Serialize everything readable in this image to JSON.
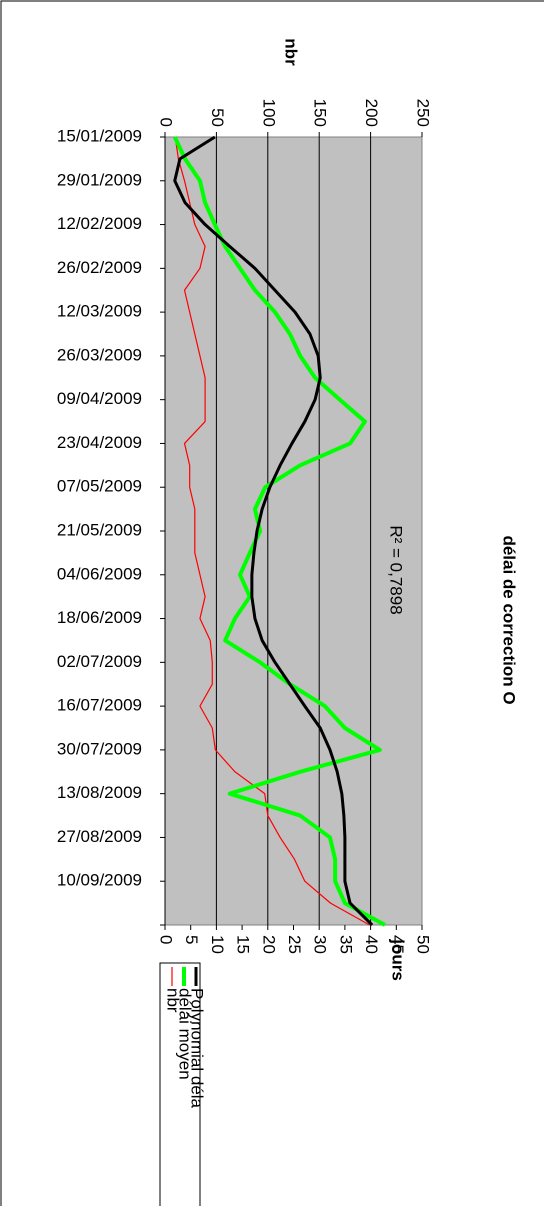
{
  "chart_data": {
    "type": "line",
    "title": "délai de correction O",
    "ylabel": "jours",
    "y2label": "nbr",
    "annotation": "R² = 0,7898",
    "x": [
      "15/01/2009",
      "22/01/2009",
      "29/01/2009",
      "05/02/2009",
      "12/02/2009",
      "19/02/2009",
      "26/02/2009",
      "05/03/2009",
      "12/03/2009",
      "19/03/2009",
      "26/03/2009",
      "02/04/2009",
      "09/04/2009",
      "16/04/2009",
      "23/04/2009",
      "30/04/2009",
      "07/05/2009",
      "14/05/2009",
      "21/05/2009",
      "28/05/2009",
      "04/06/2009",
      "11/06/2009",
      "18/06/2009",
      "25/06/2009",
      "02/07/2009",
      "09/07/2009",
      "16/07/2009",
      "23/07/2009",
      "30/07/2009",
      "06/08/2009",
      "13/08/2009",
      "20/08/2009",
      "27/08/2009",
      "03/09/2009",
      "10/09/2009",
      "17/09/2009",
      "24/09/2009"
    ],
    "xlim": [
      "15/01/2009",
      "24/09/2009"
    ],
    "xticks": [
      "15/01/2009",
      "29/01/2009",
      "12/02/2009",
      "26/02/2009",
      "12/03/2009",
      "26/03/2009",
      "09/04/2009",
      "23/04/2009",
      "07/05/2009",
      "21/05/2009",
      "04/06/2009",
      "18/06/2009",
      "02/07/2009",
      "16/07/2009",
      "30/07/2009",
      "13/08/2009",
      "27/08/2009",
      "10/09/2009"
    ],
    "ylim": [
      0,
      50
    ],
    "yticks": [
      0,
      5,
      10,
      15,
      20,
      25,
      30,
      35,
      40,
      45,
      50
    ],
    "y2lim": [
      0,
      250
    ],
    "y2ticks": [
      0,
      50,
      100,
      150,
      200,
      250
    ],
    "grid": true,
    "series": [
      {
        "name": "nbr",
        "color": "#ff0000",
        "axis": "y2",
        "values": [
          10,
          13,
          19,
          24,
          29,
          39,
          34,
          19,
          24,
          29,
          34,
          39,
          39,
          39,
          19,
          24,
          24,
          29,
          29,
          29,
          34,
          39,
          34,
          44,
          46,
          46,
          34,
          46,
          49,
          68,
          97,
          100,
          112,
          126,
          136,
          161,
          199
        ]
      },
      {
        "name": "délai moyen",
        "color": "#00ff00",
        "values": [
          1.9,
          3.9,
          6.8,
          7.8,
          9.7,
          11.7,
          14.6,
          17.5,
          21.4,
          24.3,
          26.3,
          29.2,
          34,
          38.9,
          36,
          26.3,
          19.5,
          17.5,
          18.5,
          16.5,
          14.6,
          16.5,
          13.6,
          11.7,
          18.5,
          24.3,
          31.1,
          35,
          41.8,
          26.3,
          12.6,
          26.3,
          32.1,
          33.1,
          33.1,
          35,
          42.8
        ]
      },
      {
        "name": "Polynomial déla",
        "color": "#000000",
        "values": [
          9.7,
          2.9,
          1.9,
          3.9,
          7.8,
          12.6,
          17.5,
          21.4,
          25.3,
          28.2,
          29.8,
          30.2,
          29.2,
          27.2,
          24.7,
          22.4,
          20.4,
          18.9,
          17.9,
          17.3,
          16.9,
          16.9,
          17.5,
          18.9,
          21.4,
          24.3,
          27.2,
          30.2,
          32.1,
          33.5,
          34.4,
          34.8,
          35,
          35,
          35,
          36,
          40.3
        ]
      }
    ]
  }
}
